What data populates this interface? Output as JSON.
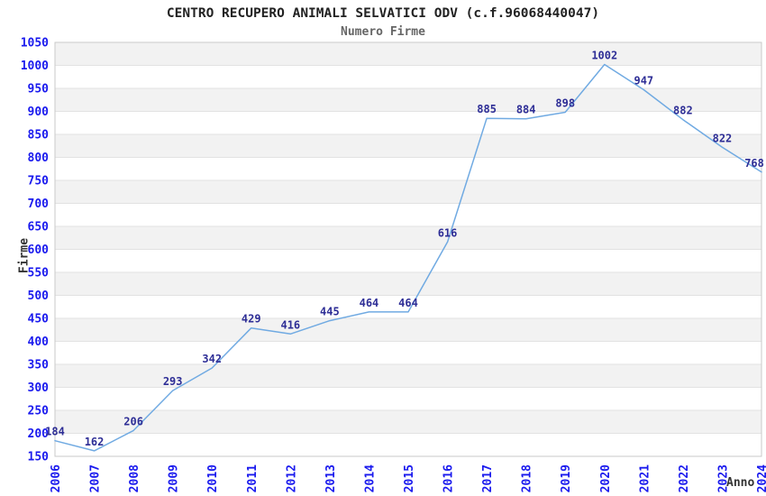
{
  "page": {
    "title": "CENTRO RECUPERO ANIMALI SELVATICI ODV (c.f.96068440047)",
    "subtitle": "Numero Firme"
  },
  "chart_data": {
    "type": "line",
    "title": "CENTRO RECUPERO ANIMALI SELVATICI ODV (c.f.96068440047)",
    "subtitle": "Numero Firme",
    "xlabel": "Anno",
    "ylabel": "Firme",
    "x": [
      "2006",
      "2007",
      "2008",
      "2009",
      "2010",
      "2011",
      "2012",
      "2013",
      "2014",
      "2015",
      "2016",
      "2017",
      "2018",
      "2019",
      "2020",
      "2021",
      "2022",
      "2023",
      "2024"
    ],
    "values": [
      184,
      162,
      206,
      293,
      342,
      429,
      416,
      445,
      464,
      464,
      616,
      885,
      884,
      898,
      1002,
      947,
      882,
      822,
      768
    ],
    "ylim": [
      150,
      1050
    ],
    "ytick_step": 50,
    "grid": "horizontal gridlines with alternating shaded bands",
    "legend": "none",
    "data_labels_shown": true,
    "colors": {
      "line": "#70aae2",
      "tick_label": "#1a1aee",
      "data_label": "#2e2e96",
      "band": "#f2f2f2",
      "band_alt": "#ffffff",
      "gridline": "#e2e2e2",
      "plot_border": "#c9c9c9",
      "title": "#222222",
      "subtitle": "#666666",
      "axis_title": "#333333"
    }
  }
}
